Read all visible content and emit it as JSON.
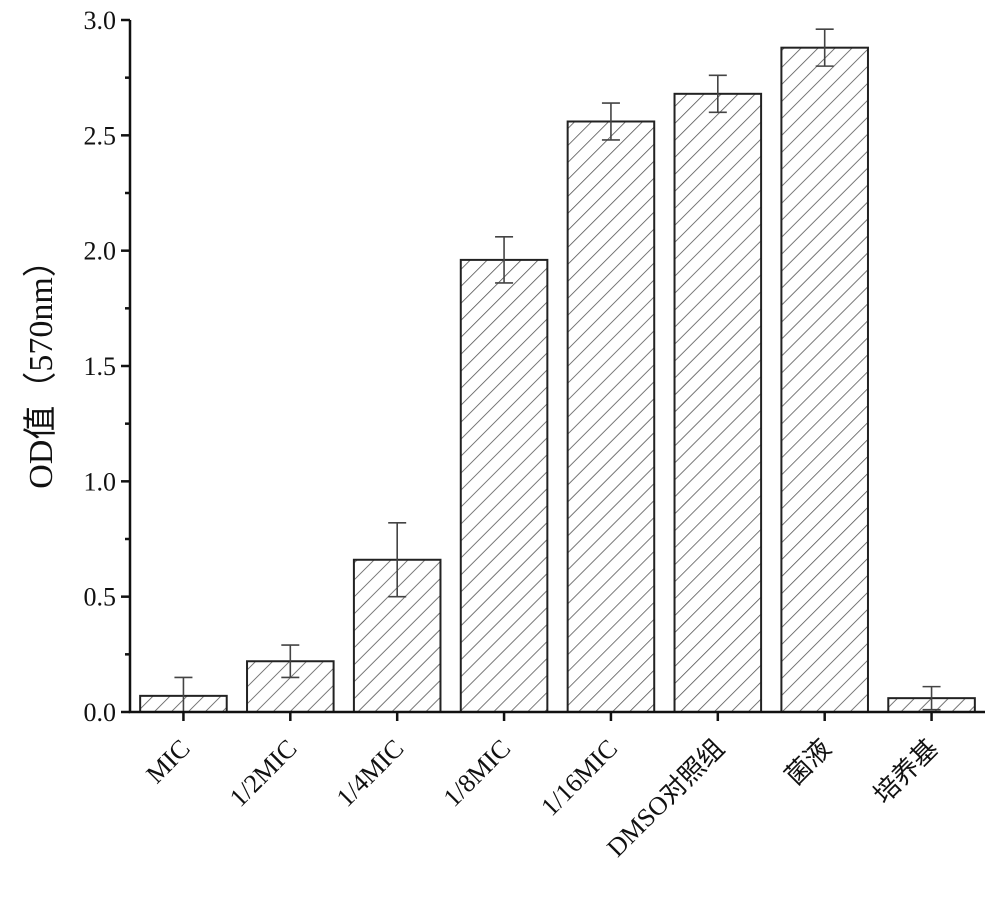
{
  "chart_data": {
    "type": "bar",
    "title": "",
    "xlabel": "",
    "ylabel": "OD值（570nm）",
    "ylim": [
      0,
      3.0
    ],
    "yticks": [
      "0.0",
      "0.5",
      "1.0",
      "1.5",
      "2.0",
      "2.5",
      "3.0"
    ],
    "categories": [
      "MIC",
      "1/2MIC",
      "1/4MIC",
      "1/8MIC",
      "1/16MIC",
      "DMSO对照组",
      "菌液",
      "培养基"
    ],
    "values": [
      0.07,
      0.22,
      0.66,
      1.96,
      2.56,
      2.68,
      2.88,
      0.06
    ],
    "errors": [
      0.08,
      0.07,
      0.16,
      0.1,
      0.08,
      0.08,
      0.08,
      0.05
    ],
    "grid": false,
    "legend": "none",
    "bar_fill": "hatched",
    "colors": {
      "bar_stroke": "#222222",
      "hatch": "#555555",
      "axis": "#111111"
    }
  }
}
